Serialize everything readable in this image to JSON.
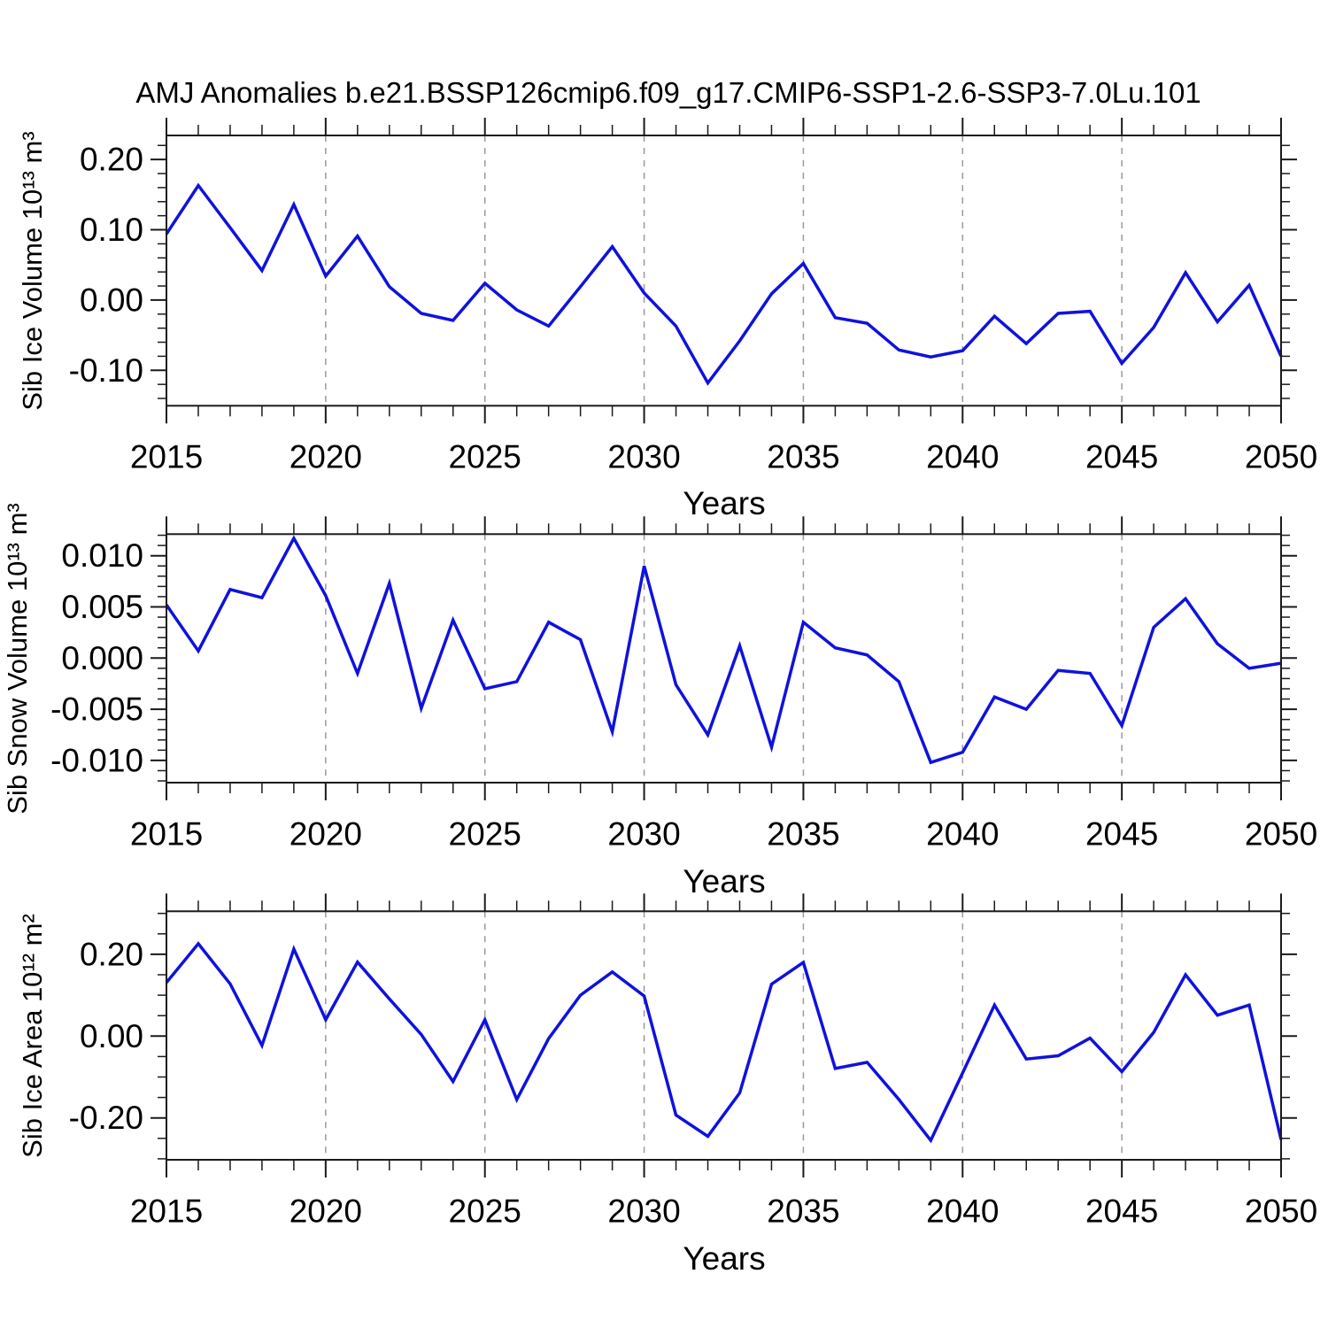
{
  "title": "AMJ Anomalies b.e21.BSSP126cmip6.f09_g17.CMIP6-SSP1-2.6-SSP3-7.0Lu.101",
  "colors": {
    "line": "#0f12dd",
    "axis": "#1a1a1a",
    "gridline": "#9a9a9a",
    "text": "#000000",
    "background": "#ffffff"
  },
  "chart_data": [
    {
      "type": "line",
      "title": "",
      "xlabel": "Years",
      "ylabel": "Sib Ice Volume 10¹³ m³",
      "x": [
        2015,
        2016,
        2017,
        2018,
        2019,
        2020,
        2021,
        2022,
        2023,
        2024,
        2025,
        2026,
        2027,
        2028,
        2029,
        2030,
        2031,
        2032,
        2033,
        2034,
        2035,
        2036,
        2037,
        2038,
        2039,
        2040,
        2041,
        2042,
        2043,
        2044,
        2045,
        2046,
        2047,
        2048,
        2049,
        2050
      ],
      "values": [
        0.094,
        0.163,
        0.103,
        0.042,
        0.136,
        0.034,
        0.091,
        0.019,
        -0.019,
        -0.029,
        0.024,
        -0.014,
        -0.037,
        0.019,
        0.076,
        0.01,
        -0.037,
        -0.118,
        -0.058,
        0.009,
        0.052,
        -0.025,
        -0.033,
        -0.071,
        -0.081,
        -0.072,
        -0.023,
        -0.062,
        -0.019,
        -0.016,
        -0.09,
        -0.039,
        0.039,
        -0.031,
        0.021,
        -0.08
      ],
      "xlim": [
        2015,
        2050
      ],
      "ylim": [
        -0.1504,
        0.2342
      ],
      "yticks_major": [
        0.2,
        0.1,
        0.0,
        -0.1
      ],
      "ytick_labels": [
        "0.20",
        "0.10",
        "0.00",
        "-0.10"
      ],
      "yminor_step": 0.02,
      "xticks_major": [
        2015,
        2020,
        2025,
        2030,
        2035,
        2040,
        2045,
        2050
      ],
      "xtick_labels": [
        "2015",
        "2020",
        "2025",
        "2030",
        "2035",
        "2040",
        "2045",
        "2050"
      ],
      "x_gridlines": [
        2020,
        2025,
        2030,
        2035,
        2040,
        2045
      ],
      "grid": "vertical-dashed",
      "legend": "none"
    },
    {
      "type": "line",
      "title": "",
      "xlabel": "Years",
      "ylabel": "Sib Snow Volume 10¹³ m³",
      "x": [
        2015,
        2016,
        2017,
        2018,
        2019,
        2020,
        2021,
        2022,
        2023,
        2024,
        2025,
        2026,
        2027,
        2028,
        2029,
        2030,
        2031,
        2032,
        2033,
        2034,
        2035,
        2036,
        2037,
        2038,
        2039,
        2040,
        2041,
        2042,
        2043,
        2044,
        2045,
        2046,
        2047,
        2048,
        2049,
        2050
      ],
      "values": [
        0.0052,
        0.0007,
        0.0067,
        0.0059,
        0.0117,
        0.0061,
        -0.0015,
        0.0073,
        -0.0049,
        0.0037,
        -0.003,
        -0.0023,
        0.0035,
        0.0018,
        -0.0072,
        0.009,
        -0.0026,
        -0.0075,
        0.0012,
        -0.0087,
        0.0035,
        0.001,
        0.0003,
        -0.0023,
        -0.0102,
        -0.0092,
        -0.0038,
        -0.005,
        -0.0012,
        -0.0015,
        -0.0066,
        0.003,
        0.0058,
        0.0014,
        -0.001,
        -0.0005
      ],
      "xlim": [
        2015,
        2050
      ],
      "ylim": [
        -0.01217,
        0.01211
      ],
      "yticks_major": [
        0.01,
        0.005,
        0.0,
        -0.005,
        -0.01
      ],
      "ytick_labels": [
        "0.010",
        "0.005",
        "0.000",
        "-0.005",
        "-0.010"
      ],
      "yminor_step": 0.001,
      "xticks_major": [
        2015,
        2020,
        2025,
        2030,
        2035,
        2040,
        2045,
        2050
      ],
      "xtick_labels": [
        "2015",
        "2020",
        "2025",
        "2030",
        "2035",
        "2040",
        "2045",
        "2050"
      ],
      "x_gridlines": [
        2020,
        2025,
        2030,
        2035,
        2040,
        2045
      ],
      "grid": "vertical-dashed",
      "legend": "none"
    },
    {
      "type": "line",
      "title": "",
      "xlabel": "Years",
      "ylabel": "Sib Ice Area 10¹² m²",
      "x": [
        2015,
        2016,
        2017,
        2018,
        2019,
        2020,
        2021,
        2022,
        2023,
        2024,
        2025,
        2026,
        2027,
        2028,
        2029,
        2030,
        2031,
        2032,
        2033,
        2034,
        2035,
        2036,
        2037,
        2038,
        2039,
        2040,
        2041,
        2042,
        2043,
        2044,
        2045,
        2046,
        2047,
        2048,
        2049,
        2050
      ],
      "values": [
        0.131,
        0.226,
        0.128,
        -0.023,
        0.213,
        0.04,
        0.181,
        0.091,
        0.004,
        -0.111,
        0.04,
        -0.155,
        -0.006,
        0.1,
        0.157,
        0.098,
        -0.193,
        -0.245,
        -0.139,
        0.127,
        0.18,
        -0.079,
        -0.064,
        -0.155,
        -0.255,
        -0.09,
        0.076,
        -0.056,
        -0.048,
        -0.005,
        -0.087,
        0.009,
        0.15,
        0.051,
        0.076,
        -0.253
      ],
      "xlim": [
        2015,
        2050
      ],
      "ylim": [
        -0.3024,
        0.3052
      ],
      "yticks_major": [
        0.2,
        0.0,
        -0.2
      ],
      "ytick_labels": [
        "0.20",
        "0.00",
        "-0.20"
      ],
      "yminor_step": 0.05,
      "xticks_major": [
        2015,
        2020,
        2025,
        2030,
        2035,
        2040,
        2045,
        2050
      ],
      "xtick_labels": [
        "2015",
        "2020",
        "2025",
        "2030",
        "2035",
        "2040",
        "2045",
        "2050"
      ],
      "x_gridlines": [
        2020,
        2025,
        2030,
        2035,
        2040,
        2045
      ],
      "grid": "vertical-dashed",
      "legend": "none"
    }
  ]
}
